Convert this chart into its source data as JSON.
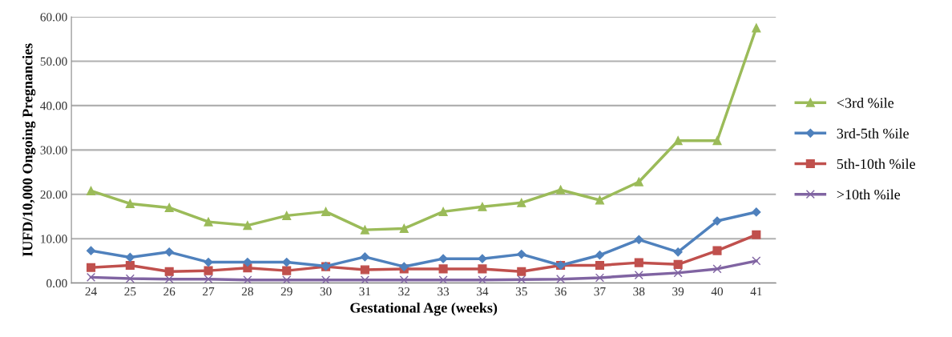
{
  "chart_data": {
    "type": "line",
    "xlabel": "Gestational Age (weeks)",
    "ylabel": "IUFD/10,000 Ongoing Pregnancies",
    "categories": [
      "24",
      "25",
      "26",
      "27",
      "28",
      "29",
      "30",
      "31",
      "32",
      "33",
      "34",
      "35",
      "36",
      "37",
      "38",
      "39",
      "40",
      "41"
    ],
    "series": [
      {
        "name": "<3rd %ile",
        "color": "#9bbb59",
        "marker": "triangle",
        "values": [
          20.8,
          17.9,
          17.0,
          13.8,
          13.0,
          15.2,
          16.1,
          12.0,
          12.3,
          16.1,
          17.2,
          18.1,
          21.0,
          18.7,
          22.8,
          32.1,
          32.1,
          57.5
        ]
      },
      {
        "name": "3rd-5th %ile",
        "color": "#4f81bd",
        "marker": "diamond",
        "values": [
          7.3,
          5.8,
          7.0,
          4.7,
          4.7,
          4.7,
          3.8,
          5.9,
          3.7,
          5.5,
          5.5,
          6.5,
          4.0,
          6.3,
          9.8,
          7.0,
          14.0,
          16.0
        ]
      },
      {
        "name": "5th-10th %ile",
        "color": "#c0504d",
        "marker": "square",
        "values": [
          3.5,
          4.0,
          2.6,
          2.8,
          3.4,
          2.8,
          3.7,
          3.0,
          3.2,
          3.2,
          3.2,
          2.6,
          4.0,
          4.0,
          4.6,
          4.2,
          7.3,
          10.9
        ]
      },
      {
        "name": ">10th %ile",
        "color": "#8064a2",
        "marker": "cross",
        "values": [
          1.3,
          1.0,
          0.9,
          0.9,
          0.7,
          0.7,
          0.7,
          0.7,
          0.7,
          0.7,
          0.7,
          0.8,
          0.9,
          1.2,
          1.8,
          2.3,
          3.2,
          5.0
        ]
      }
    ],
    "ylim": [
      0,
      60
    ],
    "yticks": [
      {
        "value": 0,
        "label": "0.00"
      },
      {
        "value": 10,
        "label": "10.00"
      },
      {
        "value": 20,
        "label": "20.00"
      },
      {
        "value": 30,
        "label": "30.00"
      },
      {
        "value": 40,
        "label": "40.00"
      },
      {
        "value": 50,
        "label": "50.00"
      },
      {
        "value": 60,
        "label": "60.00"
      }
    ],
    "grid": "y",
    "legend": "right",
    "line_style": "solid"
  }
}
